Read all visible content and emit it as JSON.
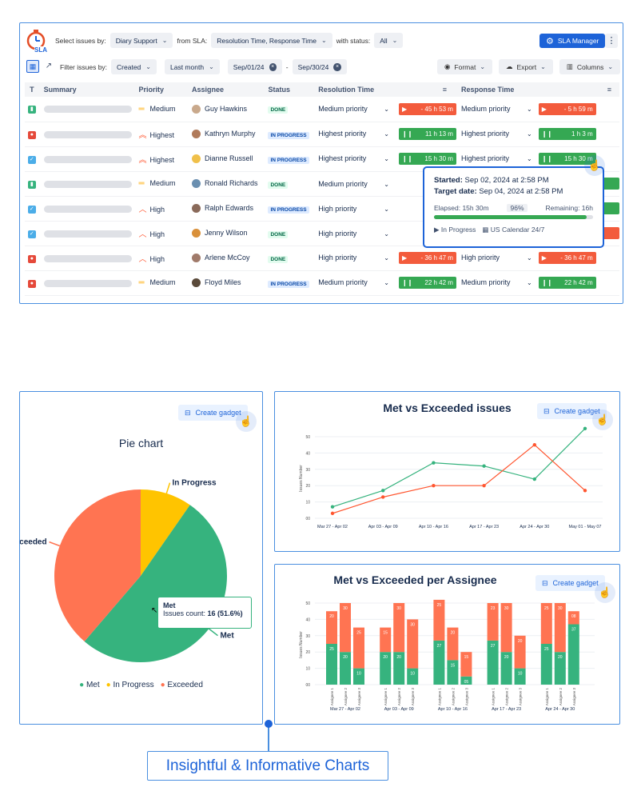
{
  "sla": {
    "logo_text": "SLA",
    "select_issues_label": "Select issues by:",
    "select_issues_value": "Diary Support",
    "from_sla_label": "from SLA:",
    "from_sla_value": "Resolution Time, Response Time",
    "with_status_label": "with status:",
    "with_status_value": "All",
    "manager_button": "SLA Manager",
    "filter_label": "Filter issues by:",
    "filter_field": "Created",
    "filter_period": "Last month",
    "date_from": "Sep/01/24",
    "date_to": "Sep/30/24",
    "date_sep": "-",
    "format_label": "Format",
    "export_label": "Export",
    "columns_label": "Columns",
    "headers": [
      "T",
      "Summary",
      "Priority",
      "Assignee",
      "Status",
      "Resolution Time",
      "Response Time"
    ],
    "rows": [
      {
        "type": "story",
        "priority": "Medium",
        "assignee": "Guy Hawkins",
        "status": "DONE",
        "res_sel": "Medium priority",
        "res_time": "- 45 h 53 m",
        "res_color": "red",
        "resp_sel": "Medium priority",
        "resp_time": "- 5 h 59 m",
        "resp_color": "red"
      },
      {
        "type": "bug",
        "priority": "Highest",
        "assignee": "Kathryn Murphy",
        "status": "IN PROGRESS",
        "res_sel": "Highest priority",
        "res_time": "11 h 13 m",
        "res_color": "green",
        "resp_sel": "Highest priority",
        "resp_time": "1 h 3 m",
        "resp_color": "green"
      },
      {
        "type": "task",
        "priority": "Highest",
        "assignee": "Dianne Russell",
        "status": "IN PROGRESS",
        "res_sel": "Highest priority",
        "res_time": "15 h 30 m",
        "res_color": "green",
        "resp_sel": "Highest priority",
        "resp_time": "15 h 30 m",
        "resp_color": "green"
      },
      {
        "type": "story",
        "priority": "Medium",
        "assignee": "Ronald Richards",
        "status": "DONE",
        "res_sel": "Medium priority",
        "res_time": "",
        "res_color": "",
        "resp_sel": "",
        "resp_time": "",
        "resp_color": "green"
      },
      {
        "type": "task",
        "priority": "High",
        "assignee": "Ralph Edwards",
        "status": "IN PROGRESS",
        "res_sel": "High priority",
        "res_time": "",
        "res_color": "",
        "resp_sel": "",
        "resp_time": "",
        "resp_color": "green"
      },
      {
        "type": "task",
        "priority": "High",
        "assignee": "Jenny Wilson",
        "status": "DONE",
        "res_sel": "High priority",
        "res_time": "",
        "res_color": "",
        "resp_sel": "",
        "resp_time": "",
        "resp_color": "red"
      },
      {
        "type": "bug",
        "priority": "High",
        "assignee": "Arlene McCoy",
        "status": "DONE",
        "res_sel": "High priority",
        "res_time": "- 36 h 47 m",
        "res_color": "red",
        "resp_sel": "High priority",
        "resp_time": "- 36 h 47 m",
        "resp_color": "red"
      },
      {
        "type": "bug",
        "priority": "Medium",
        "assignee": "Floyd Miles",
        "status": "IN PROGRESS",
        "res_sel": "Medium priority",
        "res_time": "22 h 42 m",
        "res_color": "green",
        "resp_sel": "Medium priority",
        "resp_time": "22 h 42 m",
        "resp_color": "green"
      }
    ],
    "tooltip": {
      "started_label": "Started:",
      "started_value": "Sep 02, 2024 at 2:58 PM",
      "target_label": "Target date:",
      "target_value": "Sep 04, 2024 at 2:58 PM",
      "elapsed": "Elapsed: 15h 30m",
      "percent": "96%",
      "percent_value": 0.96,
      "remaining": "Remaining: 16h",
      "status": "In Progress",
      "calendar": "US Calendar 24/7"
    }
  },
  "gadget_label": "Create gadget",
  "pie": {
    "title": "Pie chart",
    "hover_title": "Met",
    "hover_label": "Issues count:",
    "hover_value": "16 (51.6%)"
  },
  "bottom_label": "Insightful & Informative Charts",
  "chart_data": [
    {
      "type": "pie",
      "title": "Pie chart",
      "labels": [
        "Met",
        "In Progress",
        "Exceeded"
      ],
      "values": [
        16,
        3,
        12
      ],
      "colors": [
        "#36b37e",
        "#ffc400",
        "#ff7452"
      ],
      "legend": "bottom"
    },
    {
      "type": "line",
      "title": "Met vs Exceeded issues",
      "ylabel": "Issues Number",
      "categories": [
        "Mar 27 - Apr 02",
        "Apr 03 - Apr 09",
        "Apr 10 - Apr 16",
        "Apr 17 - Apr 23",
        "Apr 24 - Apr 30",
        "May 01 - May 07"
      ],
      "yticks": [
        "00",
        "10",
        "20",
        "30",
        "40",
        "50"
      ],
      "ylim": [
        0,
        50
      ],
      "series": [
        {
          "color": "#36b37e",
          "x": [
            0,
            1,
            2,
            3,
            4,
            5
          ],
          "values": [
            7,
            17,
            34,
            32,
            24,
            55
          ]
        },
        {
          "color": "#ff5630",
          "x": [
            0,
            1,
            2,
            3,
            4,
            5
          ],
          "values": [
            3,
            13,
            20,
            20,
            45,
            17
          ]
        }
      ],
      "grid": true
    },
    {
      "type": "bar",
      "title": "Met vs Exceeded per Assignee",
      "ylabel": "Issues Number",
      "yticks": [
        "00",
        "10",
        "20",
        "30",
        "40",
        "50"
      ],
      "ylim": [
        0,
        50
      ],
      "groups": [
        "Mar 27 - Apr 02",
        "Apr 03 - Apr 09",
        "Apr 10 - Apr 16",
        "Apr 17 - Apr 23",
        "Apr 24 - Apr 30"
      ],
      "categories": [
        "Assignee 1",
        "Assignee 2",
        "Assignee 3"
      ],
      "stacked": true,
      "series": [
        {
          "color": "#36b37e",
          "values": [
            [
              25,
              20,
              10
            ],
            [
              20,
              20,
              10
            ],
            [
              27,
              15,
              5
            ],
            [
              27,
              20,
              10
            ],
            [
              25,
              20,
              37
            ]
          ],
          "labels": [
            [
              "25",
              "20",
              "10"
            ],
            [
              "20",
              "20",
              "10"
            ],
            [
              "27",
              "15",
              "05"
            ],
            [
              "27",
              "20",
              "10"
            ],
            [
              "25",
              "20",
              "37"
            ]
          ]
        },
        {
          "color": "#ff7452",
          "values": [
            [
              20,
              30,
              25
            ],
            [
              15,
              30,
              30
            ],
            [
              25,
              20,
              15
            ],
            [
              23,
              30,
              20
            ],
            [
              25,
              30,
              8
            ]
          ],
          "labels": [
            [
              "20",
              "30",
              "25"
            ],
            [
              "15",
              "30",
              "30"
            ],
            [
              "25",
              "20",
              "15"
            ],
            [
              "23",
              "30",
              "20"
            ],
            [
              "25",
              "30",
              "08"
            ]
          ]
        }
      ]
    }
  ]
}
